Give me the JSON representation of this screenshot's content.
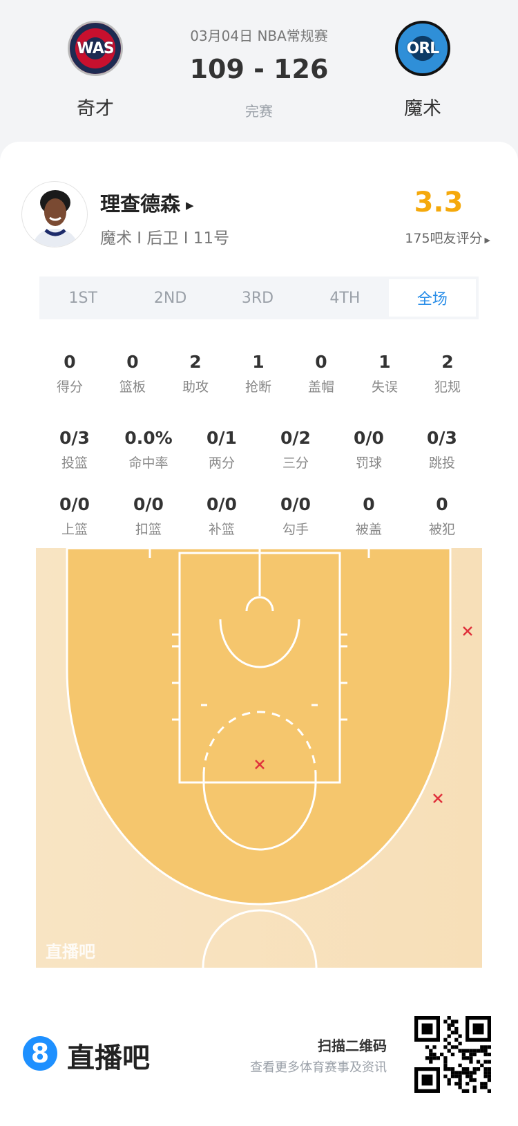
{
  "match": {
    "date_league": "03月04日 NBA常规赛",
    "score": "109 - 126",
    "status": "完赛"
  },
  "home": {
    "abbr": "WAS",
    "name": "奇才",
    "color": "#c8102e"
  },
  "away": {
    "abbr": "ORL",
    "name": "魔术",
    "color": "#2f8fd8"
  },
  "player": {
    "name": "理查德森",
    "info": "魔术 I 后卫 I 11号",
    "rating": "3.3",
    "rating_count": "175吧友评分",
    "rating_color": "#f5a90c"
  },
  "tabs": [
    {
      "label": "1ST"
    },
    {
      "label": "2ND"
    },
    {
      "label": "3RD"
    },
    {
      "label": "4TH"
    },
    {
      "label": "全场",
      "active": true
    }
  ],
  "stats_row1": [
    {
      "v": "0",
      "l": "得分"
    },
    {
      "v": "0",
      "l": "篮板"
    },
    {
      "v": "2",
      "l": "助攻"
    },
    {
      "v": "1",
      "l": "抢断"
    },
    {
      "v": "0",
      "l": "盖帽"
    },
    {
      "v": "1",
      "l": "失误"
    },
    {
      "v": "2",
      "l": "犯规"
    }
  ],
  "stats_row2": [
    {
      "v": "0/3",
      "l": "投篮"
    },
    {
      "v": "0.0%",
      "l": "命中率"
    },
    {
      "v": "0/1",
      "l": "两分"
    },
    {
      "v": "0/2",
      "l": "三分"
    },
    {
      "v": "0/0",
      "l": "罚球"
    },
    {
      "v": "0/3",
      "l": "跳投"
    }
  ],
  "stats_row3": [
    {
      "v": "0/0",
      "l": "上篮"
    },
    {
      "v": "0/0",
      "l": "扣篮"
    },
    {
      "v": "0/0",
      "l": "补篮"
    },
    {
      "v": "0/0",
      "l": "勾手"
    },
    {
      "v": "0",
      "l": "被盖"
    },
    {
      "v": "0",
      "l": "被犯"
    }
  ],
  "shot_chart": {
    "watermark": "直播吧",
    "shots": [
      {
        "result": "miss",
        "zone": "right wing three"
      },
      {
        "result": "miss",
        "zone": "right corner-wing three"
      },
      {
        "result": "miss",
        "zone": "free-throw line"
      }
    ],
    "miss_color": "#e0323c"
  },
  "footer": {
    "brand": "直播吧",
    "scan": "扫描二维码",
    "sub": "查看更多体育赛事及资讯"
  }
}
